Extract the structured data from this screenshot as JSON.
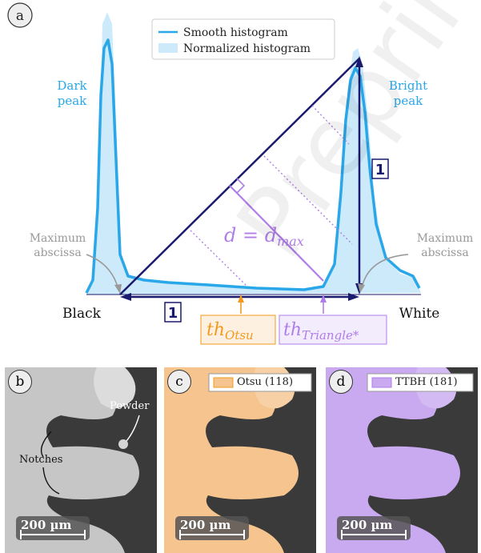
{
  "panel_a": {
    "letter": "a",
    "legend": {
      "smooth_label": "Smooth histogram",
      "normalized_label": "Normalized histogram",
      "smooth_color": "#2aa7e8",
      "fill_color": "#cdeafb"
    },
    "dark_peak": "Dark\npeak",
    "bright_peak": "Bright\npeak",
    "max_abscissa_left": "Maximum\nabscissa",
    "max_abscissa_right": "Maximum\nabscissa",
    "black_label": "Black",
    "white_label": "White",
    "one_bottom": "1",
    "one_right": "1",
    "distance_label": "d = d_max",
    "otsu_label": "th_Otsu",
    "triangle_label": "th_Triangle*",
    "colors": {
      "navy": "#1a1a6e",
      "purple": "#b07ee8",
      "orange": "#f29a1d",
      "gray": "#999999",
      "peak_text": "#2aa7e8"
    }
  },
  "panel_b": {
    "letter": "b",
    "powder": "Powder",
    "notches": "Notches",
    "scale": "200 µm"
  },
  "panel_c": {
    "letter": "c",
    "legend": "Otsu (118)",
    "scale": "200 µm",
    "overlay_color": "#f5c48f"
  },
  "panel_d": {
    "letter": "d",
    "legend": "TTBH (181)",
    "scale": "200 µm",
    "overlay_color": "#c9a9f0"
  },
  "watermark": "Preprint"
}
